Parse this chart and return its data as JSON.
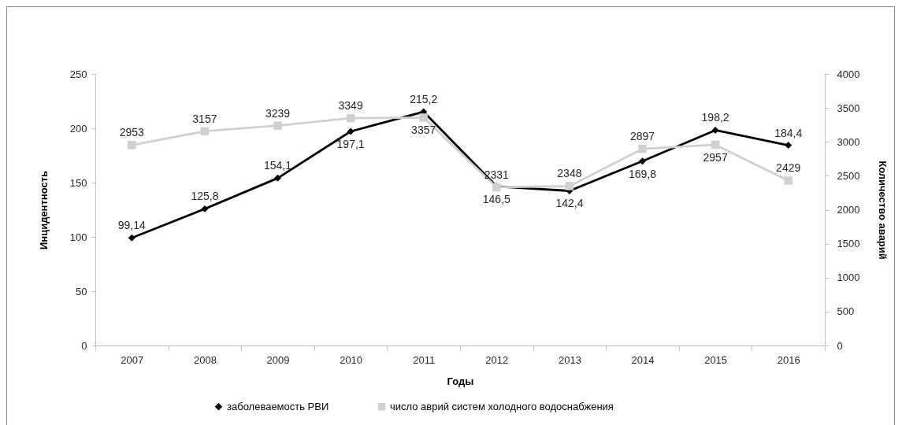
{
  "chart_data": {
    "type": "line",
    "categories": [
      "2007",
      "2008",
      "2009",
      "2010",
      "2011",
      "2012",
      "2013",
      "2014",
      "2015",
      "2016"
    ],
    "xlabel": "Годы",
    "ylabel": "Инцидентность",
    "y2label": "Количество аварий",
    "ylim": [
      0,
      250
    ],
    "yticks": [
      0,
      50,
      100,
      150,
      200,
      250
    ],
    "y2lim": [
      0,
      4000
    ],
    "y2ticks": [
      0,
      500,
      1000,
      1500,
      2000,
      2500,
      3000,
      3500,
      4000
    ],
    "legend": "bottom",
    "series": [
      {
        "name": "заболеваемость РВИ",
        "color": "#000000",
        "marker": "diamond",
        "values": [
          99.14,
          125.8,
          154.1,
          197.1,
          215.2,
          146.5,
          142.4,
          169.8,
          198.2,
          184.4
        ],
        "value_labels": [
          "99,14",
          "125,8",
          "154,1",
          "197,1",
          "215,2",
          "146,5",
          "142,4",
          "169,8",
          "198,2",
          "184,4"
        ]
      },
      {
        "name": "число аврий систем холодного водоснабжения",
        "color": "#d0d0d0",
        "marker": "square",
        "axis": "y2",
        "values": [
          2953,
          3157,
          3239,
          3349,
          3357,
          2331,
          2348,
          2897,
          2957,
          2429
        ],
        "value_labels": [
          "2953",
          "3157",
          "3239",
          "3349",
          "3357",
          "2331",
          "2348",
          "2897",
          "2957",
          "2429"
        ]
      }
    ]
  }
}
